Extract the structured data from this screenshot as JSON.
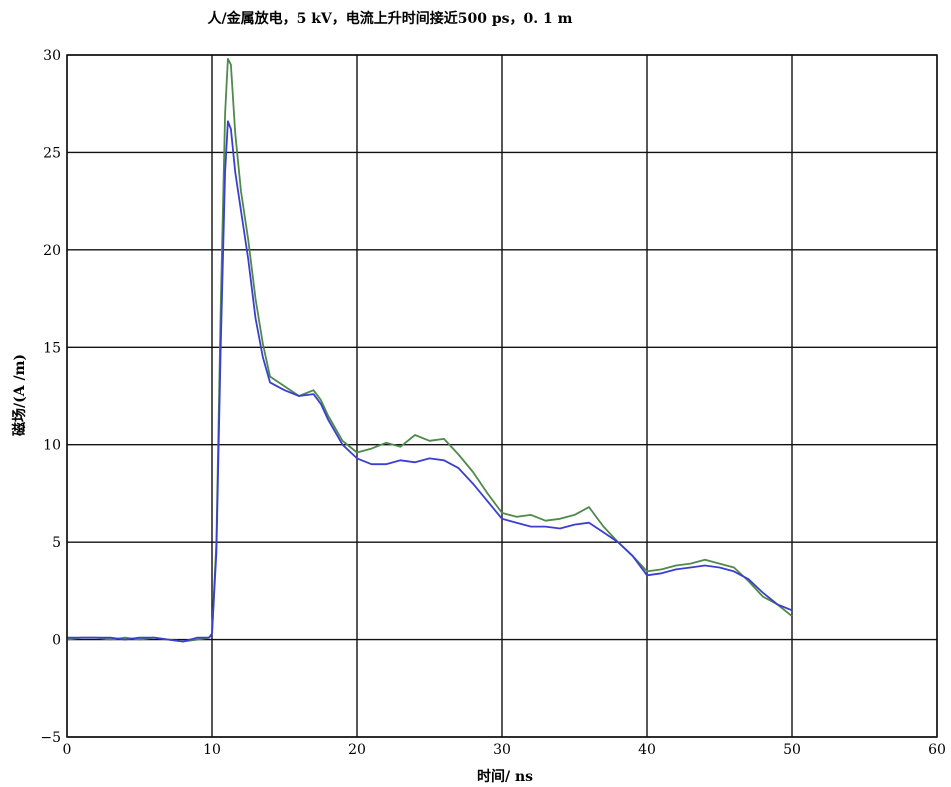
{
  "chart_data": {
    "type": "line",
    "title": "人/金属放电，5 kV，电流上升时间接近500  ps，0. 1  m",
    "xlabel": "时间/ ns",
    "ylabel": "磁场/(A /m)",
    "xlim": [
      0,
      60
    ],
    "ylim": [
      -5,
      30
    ],
    "xticks": [
      "0",
      "10",
      "20",
      "30",
      "40",
      "50",
      "60"
    ],
    "yticks": [
      "−5",
      "0",
      "5",
      "10",
      "15",
      "20",
      "25",
      "30"
    ],
    "grid": true,
    "colors": {
      "green": "#4f8a4a",
      "blue": "#3b3fd0",
      "grid": "#111111"
    },
    "series": [
      {
        "color": "#4f8a4a",
        "x": [
          0,
          1,
          2,
          3,
          4,
          5,
          6,
          7,
          8,
          9,
          9.8,
          10,
          10.3,
          10.6,
          10.9,
          11.1,
          11.3,
          11.6,
          12,
          12.5,
          13,
          13.5,
          14,
          15,
          16,
          17,
          17.5,
          18,
          19,
          20,
          21,
          22,
          23,
          24,
          25,
          26,
          27,
          28,
          29,
          30,
          31,
          32,
          33,
          34,
          35,
          36,
          37,
          38,
          39,
          40,
          41,
          42,
          43,
          44,
          45,
          46,
          47,
          48,
          49,
          50
        ],
        "y": [
          0,
          0.1,
          0.1,
          0,
          0.1,
          0,
          0.1,
          0,
          -0.1,
          0,
          0.1,
          0.3,
          5,
          17,
          27,
          29.8,
          29.5,
          26,
          23,
          20.5,
          17.5,
          15.2,
          13.5,
          13,
          12.5,
          12.8,
          12.3,
          11.5,
          10.2,
          9.6,
          9.8,
          10.1,
          9.9,
          10.5,
          10.2,
          10.3,
          9.5,
          8.6,
          7.5,
          6.5,
          6.3,
          6.4,
          6.1,
          6.2,
          6.4,
          6.8,
          5.8,
          5,
          4.3,
          3.5,
          3.6,
          3.8,
          3.9,
          4.1,
          3.9,
          3.7,
          3,
          2.2,
          1.8,
          1.2
        ]
      },
      {
        "color": "#3b3fd0",
        "x": [
          0,
          1,
          2,
          3,
          4,
          5,
          6,
          7,
          8,
          9,
          9.8,
          10,
          10.3,
          10.6,
          10.9,
          11.1,
          11.3,
          11.6,
          12,
          12.5,
          13,
          13.5,
          14,
          15,
          16,
          17,
          17.5,
          18,
          19,
          20,
          21,
          22,
          23,
          24,
          25,
          26,
          27,
          28,
          29,
          30,
          31,
          32,
          33,
          34,
          35,
          36,
          37,
          38,
          39,
          40,
          41,
          42,
          43,
          44,
          45,
          46,
          47,
          48,
          49,
          50
        ],
        "y": [
          0.1,
          0.1,
          0.1,
          0.1,
          0,
          0.1,
          0.1,
          0,
          -0.1,
          0.1,
          0.1,
          0.3,
          4.5,
          15,
          24,
          26.6,
          26.2,
          24,
          22,
          19.5,
          16.5,
          14.5,
          13.2,
          12.8,
          12.5,
          12.6,
          12.1,
          11.3,
          10,
          9.3,
          9,
          9,
          9.2,
          9.1,
          9.3,
          9.2,
          8.8,
          8,
          7.1,
          6.2,
          6,
          5.8,
          5.8,
          5.7,
          5.9,
          6,
          5.5,
          5,
          4.3,
          3.3,
          3.4,
          3.6,
          3.7,
          3.8,
          3.7,
          3.5,
          3.1,
          2.4,
          1.8,
          1.5
        ]
      }
    ]
  }
}
